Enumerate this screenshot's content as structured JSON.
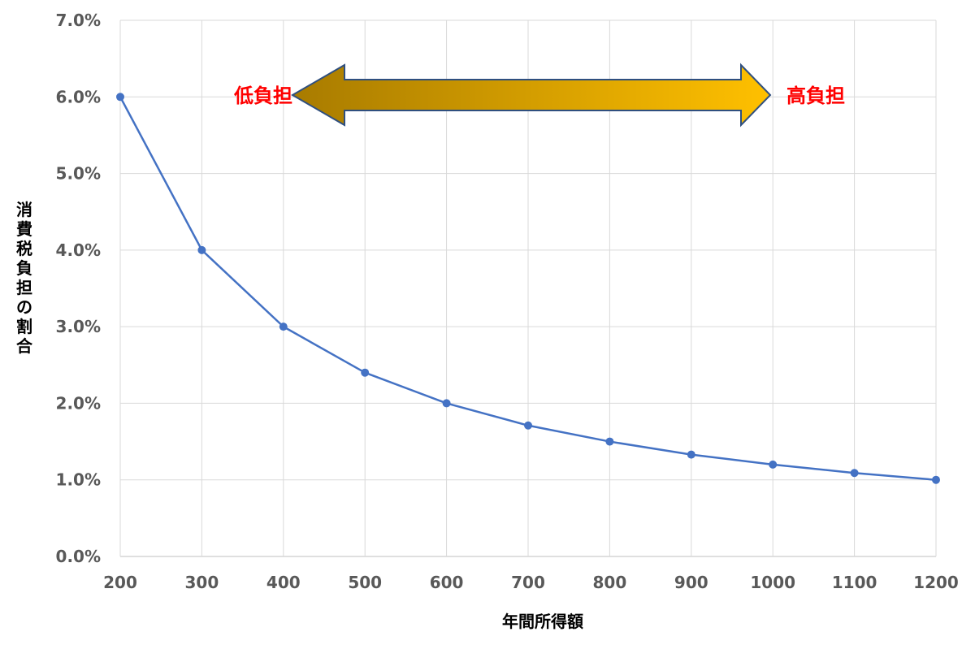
{
  "chart_data": {
    "type": "line",
    "title": "",
    "xlabel": "年間所得額",
    "ylabel": "消費税負担の割合",
    "x": [
      200,
      300,
      400,
      500,
      600,
      700,
      800,
      900,
      1000,
      1100,
      1200
    ],
    "series": [
      {
        "values": [
          6.0,
          4.0,
          3.0,
          2.4,
          2.0,
          1.71,
          1.5,
          1.33,
          1.2,
          1.09,
          1.0
        ]
      }
    ],
    "x_ticks": [
      "200",
      "300",
      "400",
      "500",
      "600",
      "700",
      "800",
      "900",
      "1000",
      "1100",
      "1200"
    ],
    "y_ticks": [
      "0.0%",
      "1.0%",
      "2.0%",
      "3.0%",
      "4.0%",
      "5.0%",
      "6.0%",
      "7.0%"
    ],
    "xlim": [
      200,
      1200
    ],
    "ylim": [
      0,
      7
    ],
    "grid": true,
    "legend": "none",
    "line_color": "#4472C4",
    "annotations": {
      "left_label": "低負担",
      "right_label": "高負担",
      "label_color": "#FF0000",
      "arrow_gradient": [
        "#A87B00",
        "#FFC000"
      ],
      "arrow_border": "#2F4F7F"
    }
  }
}
